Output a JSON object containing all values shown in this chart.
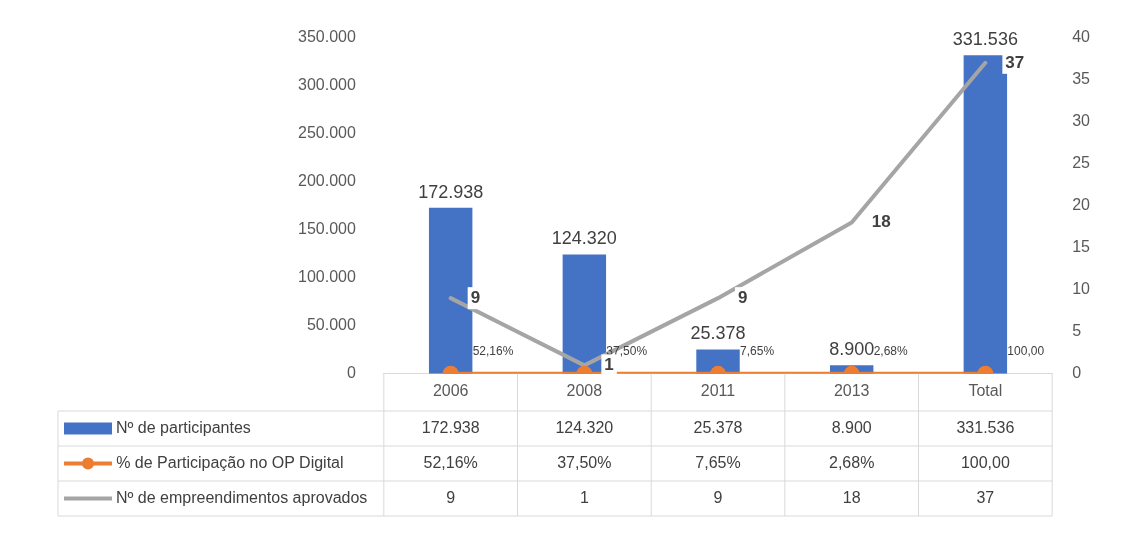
{
  "chart_data": {
    "type": "bar",
    "categories": [
      "2006",
      "2008",
      "2011",
      "2013",
      "Total"
    ],
    "series": [
      {
        "name": "Nº de participantes",
        "color": "#4472c4",
        "values": [
          172938,
          124320,
          25378,
          8900,
          331536
        ],
        "value_labels": [
          "172.938",
          "124.320",
          "25.378",
          "8.900",
          "331.536"
        ]
      },
      {
        "name": "% de Participação no OP Digital",
        "type": "line",
        "color": "#ed7d31",
        "marker": "circle",
        "values": [
          52.16,
          37.5,
          7.65,
          2.68,
          100
        ],
        "value_labels": [
          "52,16%",
          "37,50%",
          "7,65%",
          "2,68%",
          "100,00"
        ]
      },
      {
        "name": "Nº de empreendimentos aprovados",
        "type": "line",
        "axis": "y2",
        "color": "#a5a5a5",
        "marker": "none",
        "values": [
          9,
          1,
          9,
          18,
          37
        ],
        "value_labels": [
          "9",
          "1",
          "9",
          "18",
          "37"
        ]
      }
    ],
    "ylim": [
      0,
      350000
    ],
    "yticks": [
      0,
      {
        "value": 50000,
        "label": "50.000"
      },
      {
        "value": 100000,
        "label": "100.000"
      },
      {
        "value": 150000,
        "label": "150.000"
      },
      {
        "value": 200000,
        "label": "200.000"
      },
      {
        "value": 250000,
        "label": "250.000"
      },
      {
        "value": 300000,
        "label": "300.000"
      },
      {
        "value": 350000,
        "label": "350.000"
      }
    ],
    "y2lim": [
      0,
      40
    ],
    "y2ticks": [
      0,
      5,
      10,
      15,
      20,
      25,
      30,
      35,
      40
    ],
    "grid": false,
    "legend": "bottom"
  }
}
